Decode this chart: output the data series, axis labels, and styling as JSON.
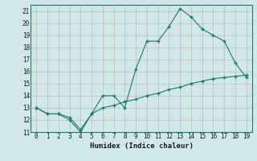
{
  "line1_x": [
    0,
    1,
    2,
    3,
    4,
    5,
    6,
    7,
    8,
    9,
    10,
    11,
    12,
    13,
    14,
    15,
    16,
    17,
    18,
    19
  ],
  "line1_y": [
    13,
    12.5,
    12.5,
    12,
    11,
    12.5,
    14,
    14,
    13,
    16.2,
    18.5,
    18.5,
    19.7,
    21.2,
    20.5,
    19.5,
    19,
    18.5,
    16.7,
    15.5
  ],
  "line2_x": [
    0,
    1,
    2,
    3,
    4,
    5,
    6,
    7,
    8,
    9,
    10,
    11,
    12,
    13,
    14,
    15,
    16,
    17,
    18,
    19
  ],
  "line2_y": [
    13,
    12.5,
    12.5,
    12.2,
    11.2,
    12.5,
    13.0,
    13.2,
    13.5,
    13.7,
    14.0,
    14.2,
    14.5,
    14.7,
    15.0,
    15.2,
    15.4,
    15.5,
    15.6,
    15.7
  ],
  "line_color": "#1a7a6e",
  "bg_color": "#d0e8e8",
  "grid_color": "#b8d8d8",
  "xlabel": "Humidex (Indice chaleur)",
  "xlim": [
    -0.5,
    19.5
  ],
  "ylim": [
    11,
    21.5
  ],
  "yticks": [
    11,
    12,
    13,
    14,
    15,
    16,
    17,
    18,
    19,
    20,
    21
  ],
  "xticks": [
    0,
    1,
    2,
    3,
    4,
    5,
    6,
    7,
    8,
    9,
    10,
    11,
    12,
    13,
    14,
    15,
    16,
    17,
    18,
    19
  ]
}
